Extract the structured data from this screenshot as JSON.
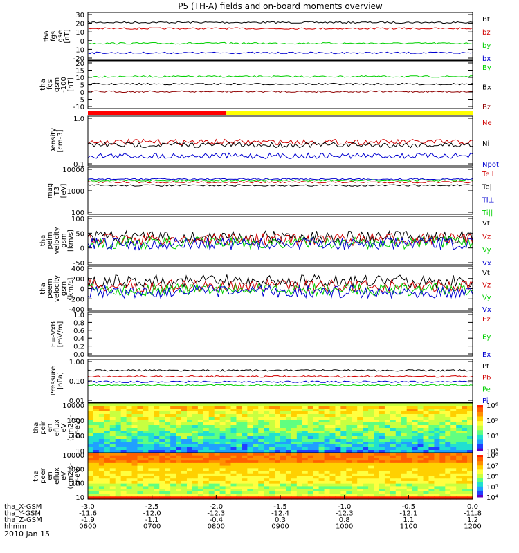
{
  "title": "P5 (TH-A) fields and on-board moments overview",
  "date_label": "2010 Jan 15",
  "chart_data": [
    {
      "type": "line",
      "name": "fgs-gse",
      "ylabel_lines": [
        "tha",
        "fgs",
        "gse",
        "[nT]"
      ],
      "ylim": [
        -20,
        30
      ],
      "yticks": [
        "30",
        "20",
        "10",
        "0",
        "-10",
        "-20"
      ],
      "series": [
        {
          "name": "Bt",
          "color": "#000000",
          "level": 21
        },
        {
          "name": "bz",
          "color": "#d00000",
          "level": 14
        },
        {
          "name": "by",
          "color": "#00d000",
          "level": -3
        },
        {
          "name": "bx",
          "color": "#0000d0",
          "level": -14
        }
      ]
    },
    {
      "type": "line",
      "name": "fgs-gsm",
      "ylabel_lines": [
        "tha",
        "fgs",
        "gsm",
        "-100",
        "[nT]"
      ],
      "ylim": [
        -15,
        20
      ],
      "yticks": [
        "20",
        "15",
        "10",
        "5",
        "0",
        "-5",
        "-10"
      ],
      "series": [
        {
          "name": "By",
          "color": "#00d000",
          "level": 9
        },
        {
          "name": "Bx",
          "color": "#000000",
          "level": 3
        },
        {
          "name": "Bz",
          "color": "#900000",
          "level": -3
        }
      ]
    },
    {
      "type": "line",
      "name": "density",
      "ylabel_lines": [
        "Density",
        "[cm-3]"
      ],
      "ylim": [
        0.1,
        1.0
      ],
      "yticks": [
        "1.0",
        "0.1"
      ],
      "log": true,
      "series": [
        {
          "name": "Ne",
          "color": "#d00000",
          "level": 0.3
        },
        {
          "name": "Ni",
          "color": "#000000",
          "level": 0.26
        },
        {
          "name": "Npot",
          "color": "#0000d0",
          "level": 0.15
        }
      ]
    },
    {
      "type": "line",
      "name": "temperature",
      "ylabel_lines": [
        "mag",
        "T3",
        "[eV]"
      ],
      "ylim": [
        100,
        10000
      ],
      "yticks": [
        "10000",
        "1000",
        "100"
      ],
      "log": true,
      "series": [
        {
          "name": "Te⊥",
          "color": "#d00000",
          "level": 2500
        },
        {
          "name": "Te||",
          "color": "#000000",
          "level": 1800
        },
        {
          "name": "Ti⊥",
          "color": "#0000d0",
          "level": 3500
        },
        {
          "name": "Ti||",
          "color": "#00d000",
          "level": 3000
        }
      ]
    },
    {
      "type": "line",
      "name": "peim-velocity",
      "ylabel_lines": [
        "tha",
        "peim",
        "velocity",
        "gsm",
        "[km/s]"
      ],
      "ylim": [
        -100,
        100
      ],
      "yticks": [
        "100",
        "50",
        "0",
        "-50"
      ],
      "series": [
        {
          "name": "Vt",
          "color": "#000000",
          "level": 15
        },
        {
          "name": "Vz",
          "color": "#d00000",
          "level": 5
        },
        {
          "name": "Vy",
          "color": "#00d000",
          "level": -10
        },
        {
          "name": "Vx",
          "color": "#0000d0",
          "level": -15
        }
      ]
    },
    {
      "type": "line",
      "name": "peem-velocity",
      "ylabel_lines": [
        "tha",
        "peem",
        "velocity",
        "gsm",
        "[km/s]"
      ],
      "ylim": [
        -400,
        400
      ],
      "yticks": [
        "400",
        "200",
        "0",
        "-200",
        "-400"
      ],
      "series": [
        {
          "name": "Vt",
          "color": "#000000",
          "level": 150
        },
        {
          "name": "Vz",
          "color": "#d00000",
          "level": 50
        },
        {
          "name": "Vy",
          "color": "#00d000",
          "level": -20
        },
        {
          "name": "Vx",
          "color": "#0000d0",
          "level": -60
        }
      ]
    },
    {
      "type": "line",
      "name": "efield",
      "ylabel_lines": [
        "E=-VxB",
        "[mV/m]"
      ],
      "ylim": [
        0,
        1.0
      ],
      "yticks": [
        "1.0",
        "0.8",
        "0.6",
        "0.4",
        "0.2",
        "0.0"
      ],
      "series": [
        {
          "name": "Ez",
          "color": "#d00000"
        },
        {
          "name": "Ey",
          "color": "#00d000"
        },
        {
          "name": "Ex",
          "color": "#0000d0"
        }
      ]
    },
    {
      "type": "line",
      "name": "pressure",
      "ylabel_lines": [
        "Pressure",
        "[nPa]"
      ],
      "ylim": [
        0.01,
        1.0
      ],
      "yticks": [
        "1.00",
        "0.10",
        "0.01"
      ],
      "log": true,
      "series": [
        {
          "name": "Pt",
          "color": "#000000",
          "level": 0.35
        },
        {
          "name": "Pb",
          "color": "#d00000",
          "level": 0.17
        },
        {
          "name": "Pe",
          "color": "#00d000",
          "level": 0.06
        },
        {
          "name": "Pi",
          "color": "#0000d0",
          "level": 0.09
        }
      ]
    },
    {
      "type": "heatmap",
      "name": "peir-spectrogram",
      "ylabel_lines": [
        "tha",
        "peir",
        "en",
        "eflux",
        "eV",
        "(cm2-s-",
        "sr-eV)"
      ],
      "yticks": [
        "10000",
        "1000",
        "100",
        "10"
      ],
      "colorbar": [
        "10⁶",
        "10⁵",
        "10⁴",
        "10³"
      ]
    },
    {
      "type": "heatmap",
      "name": "peer-spectrogram",
      "ylabel_lines": [
        "tha",
        "peer",
        "en",
        "eflux",
        "eV",
        "(cm2-s-",
        "sr-eV)"
      ],
      "yticks": [
        "10000",
        "1000",
        "100",
        "10"
      ],
      "colorbar": [
        "10⁸",
        "10⁷",
        "10⁶",
        "10⁵",
        "10⁴"
      ]
    }
  ],
  "x_axis": {
    "rows": [
      {
        "label": "tha_X-GSM",
        "values": [
          "-3.0",
          "-2.5",
          "-2.0",
          "-1.5",
          "-1.0",
          "-0.5",
          "0.0"
        ]
      },
      {
        "label": "tha_Y-GSM",
        "values": [
          "-11.6",
          "-12.0",
          "-12.3",
          "-12.4",
          "-12.3",
          "-12.1",
          "-11.8"
        ]
      },
      {
        "label": "tha_Z-GSM",
        "values": [
          "-1.9",
          "-1.1",
          "-0.4",
          "0.3",
          "0.8",
          "1.1",
          "1.2"
        ]
      },
      {
        "label": "hhmm",
        "values": [
          "0600",
          "0700",
          "0800",
          "0900",
          "1000",
          "1100",
          "1200"
        ]
      }
    ]
  },
  "mode_bar": {
    "red_fraction": 0.36,
    "red_color": "#ff0000",
    "yellow_color": "#ffff00"
  }
}
